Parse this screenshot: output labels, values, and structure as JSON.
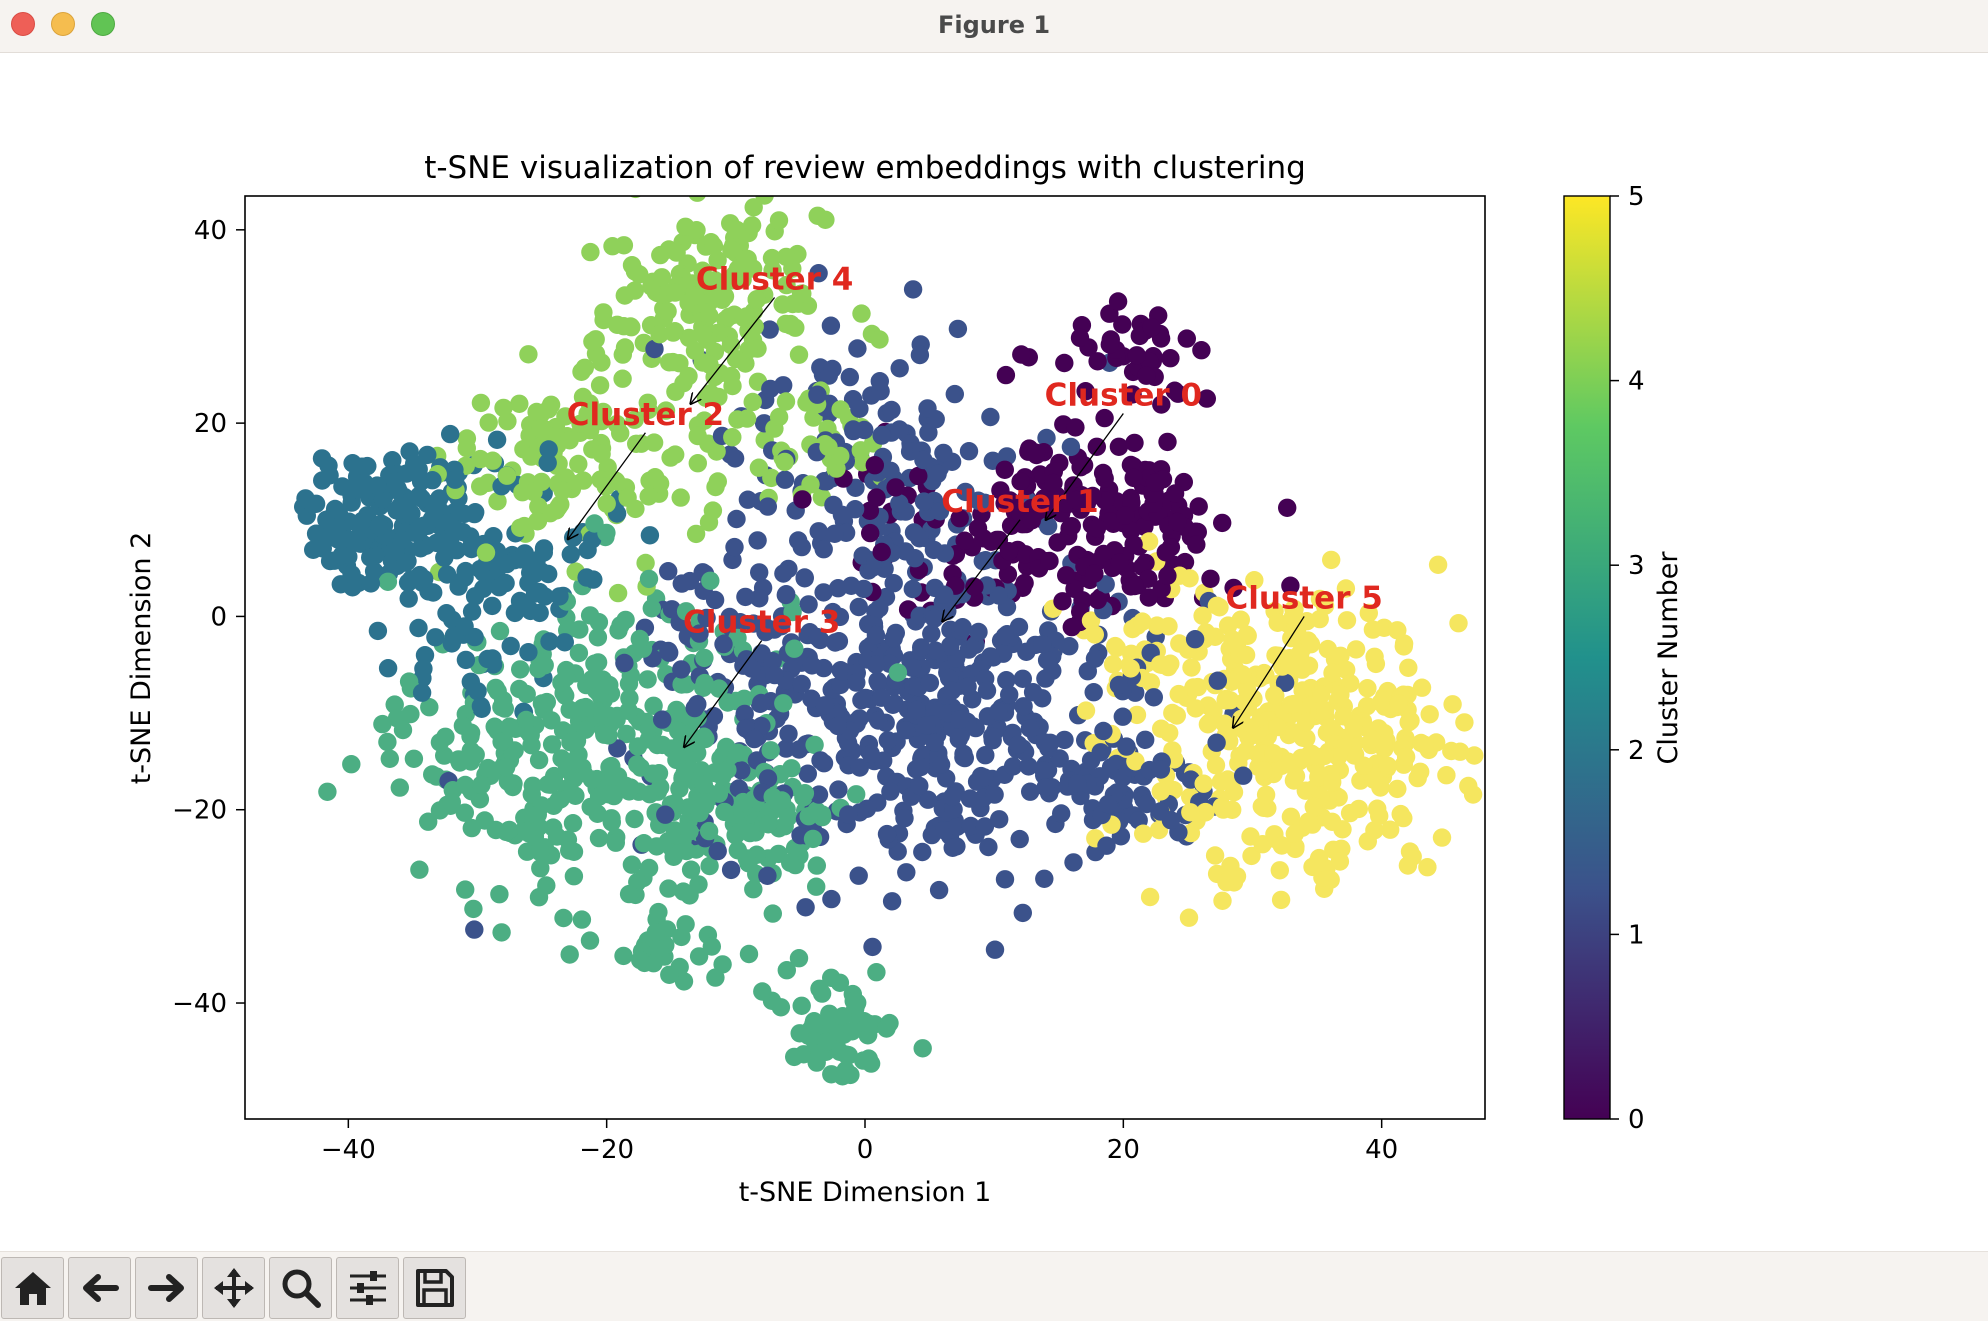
{
  "window": {
    "title": "Figure 1"
  },
  "toolbar": {
    "buttons": [
      {
        "name": "home-button",
        "icon": "home-icon"
      },
      {
        "name": "back-button",
        "icon": "arrow-left-icon"
      },
      {
        "name": "forward-button",
        "icon": "arrow-right-icon"
      },
      {
        "name": "pan-button",
        "icon": "move-icon"
      },
      {
        "name": "zoom-button",
        "icon": "magnifier-icon"
      },
      {
        "name": "configure-subplots-button",
        "icon": "sliders-icon"
      },
      {
        "name": "save-button",
        "icon": "floppy-disk-icon"
      }
    ]
  },
  "chart_data": {
    "type": "scatter",
    "title": "t-SNE visualization of review embeddings with clustering",
    "xlabel": "t-SNE Dimension 1",
    "ylabel": "t-SNE Dimension 2",
    "xlim": [
      -48,
      48
    ],
    "ylim": [
      -52,
      43.5
    ],
    "xticks": [
      -40,
      -20,
      0,
      20,
      40
    ],
    "yticks": [
      -40,
      -20,
      0,
      20,
      40
    ],
    "tick_labels_x": [
      "−40",
      "−20",
      "0",
      "20",
      "40"
    ],
    "tick_labels_y": [
      "−40",
      "−20",
      "0",
      "20",
      "40"
    ],
    "grid": false,
    "colormap": "viridis",
    "colorbar": {
      "label": "Cluster Number",
      "range": [
        0,
        5
      ],
      "ticks": [
        "0",
        "1",
        "2",
        "3",
        "4",
        "5"
      ],
      "colors": [
        "#440154",
        "#3b528b",
        "#21918c",
        "#5ec962",
        "#fde725"
      ]
    },
    "cluster_colors": [
      "#440154",
      "#3b528b",
      "#2c728e",
      "#4cae83",
      "#8fd15a",
      "#f5e65f"
    ],
    "clusters": [
      {
        "id": 0,
        "label": "Cluster 0",
        "center": [
          16,
          8
        ],
        "approx_points": 260
      },
      {
        "id": 1,
        "label": "Cluster 1",
        "center": [
          5,
          -5
        ],
        "approx_points": 700
      },
      {
        "id": 2,
        "label": "Cluster 2",
        "center": [
          -33,
          8
        ],
        "approx_points": 260
      },
      {
        "id": 3,
        "label": "Cluster 3",
        "center": [
          -19,
          -10
        ],
        "approx_points": 560
      },
      {
        "id": 4,
        "label": "Cluster 4",
        "center": [
          -14,
          24
        ],
        "approx_points": 330
      },
      {
        "id": 5,
        "label": "Cluster 5",
        "center": [
          32,
          -14
        ],
        "approx_points": 380
      }
    ],
    "annotations": [
      {
        "text": "Cluster 0",
        "text_at": [
          20,
          21
        ],
        "arrow_to": [
          14,
          10
        ]
      },
      {
        "text": "Cluster 1",
        "text_at": [
          12,
          10
        ],
        "arrow_to": [
          6,
          -0.5
        ]
      },
      {
        "text": "Cluster 2",
        "text_at": [
          -17,
          19
        ],
        "arrow_to": [
          -23,
          8
        ]
      },
      {
        "text": "Cluster 3",
        "text_at": [
          -8,
          -2.5
        ],
        "arrow_to": [
          -14,
          -13.5
        ]
      },
      {
        "text": "Cluster 4",
        "text_at": [
          -7,
          33
        ],
        "arrow_to": [
          -13.5,
          22
        ]
      },
      {
        "text": "Cluster 5",
        "text_at": [
          34,
          0
        ],
        "arrow_to": [
          28.5,
          -11.5
        ]
      }
    ],
    "annotation_color": "#e0281f"
  }
}
